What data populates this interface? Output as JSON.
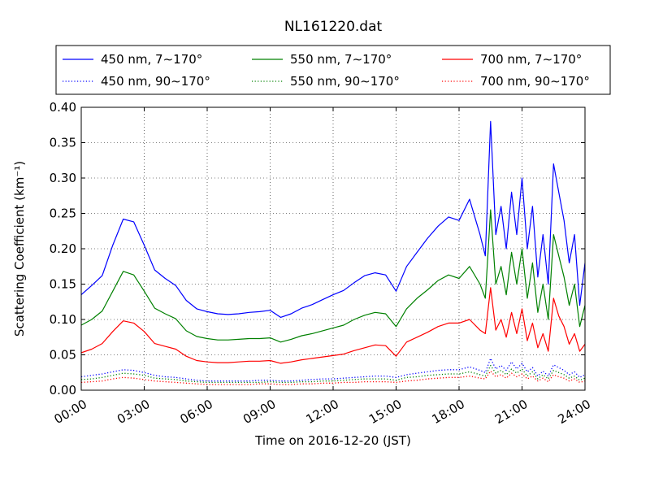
{
  "chart_data": {
    "type": "line",
    "title": "NL161220.dat",
    "xlabel": "Time on 2016-12-20 (JST)",
    "ylabel": "Scattering Coefficient (km⁻¹)",
    "xlim": [
      0,
      24
    ],
    "ylim": [
      0.0,
      0.4
    ],
    "grid": true,
    "legend_position": "top",
    "x_tick_labels": [
      "00:00",
      "03:00",
      "06:00",
      "09:00",
      "12:00",
      "15:00",
      "18:00",
      "21:00",
      "24:00"
    ],
    "y_tick_labels": [
      "0.00",
      "0.05",
      "0.10",
      "0.15",
      "0.20",
      "0.25",
      "0.30",
      "0.35",
      "0.40"
    ],
    "x_hours": [
      0.0,
      0.5,
      1.0,
      1.5,
      2.0,
      2.5,
      3.0,
      3.5,
      4.0,
      4.5,
      5.0,
      5.5,
      6.0,
      6.5,
      7.0,
      7.5,
      8.0,
      8.5,
      9.0,
      9.5,
      10.0,
      10.5,
      11.0,
      11.5,
      12.0,
      12.5,
      13.0,
      13.5,
      14.0,
      14.5,
      15.0,
      15.5,
      16.0,
      16.5,
      17.0,
      17.5,
      18.0,
      18.5,
      19.0,
      19.25,
      19.5,
      19.75,
      20.0,
      20.25,
      20.5,
      20.75,
      21.0,
      21.25,
      21.5,
      21.75,
      22.0,
      22.25,
      22.5,
      22.75,
      23.0,
      23.25,
      23.5,
      23.75,
      24.0
    ],
    "series": [
      {
        "name": "450 nm, 7∼170°",
        "color": "#0000ff",
        "style": "solid",
        "values": [
          0.135,
          0.148,
          0.162,
          0.205,
          0.242,
          0.238,
          0.205,
          0.17,
          0.158,
          0.148,
          0.127,
          0.115,
          0.111,
          0.108,
          0.107,
          0.108,
          0.11,
          0.111,
          0.113,
          0.103,
          0.108,
          0.116,
          0.121,
          0.128,
          0.135,
          0.141,
          0.152,
          0.162,
          0.166,
          0.163,
          0.14,
          0.175,
          0.195,
          0.215,
          0.232,
          0.245,
          0.24,
          0.27,
          0.22,
          0.19,
          0.38,
          0.22,
          0.26,
          0.2,
          0.28,
          0.22,
          0.3,
          0.2,
          0.26,
          0.16,
          0.22,
          0.15,
          0.32,
          0.28,
          0.24,
          0.18,
          0.22,
          0.12,
          0.18
        ]
      },
      {
        "name": "550 nm, 7∼170°",
        "color": "#008000",
        "style": "solid",
        "values": [
          0.092,
          0.1,
          0.112,
          0.14,
          0.168,
          0.163,
          0.14,
          0.116,
          0.108,
          0.101,
          0.084,
          0.076,
          0.073,
          0.071,
          0.071,
          0.072,
          0.073,
          0.073,
          0.074,
          0.068,
          0.072,
          0.077,
          0.08,
          0.084,
          0.088,
          0.092,
          0.1,
          0.106,
          0.11,
          0.108,
          0.09,
          0.115,
          0.13,
          0.142,
          0.155,
          0.163,
          0.158,
          0.175,
          0.15,
          0.13,
          0.255,
          0.15,
          0.175,
          0.135,
          0.195,
          0.15,
          0.2,
          0.13,
          0.18,
          0.11,
          0.15,
          0.1,
          0.22,
          0.19,
          0.16,
          0.12,
          0.15,
          0.09,
          0.12
        ]
      },
      {
        "name": "700 nm, 7∼170°",
        "color": "#ff0000",
        "style": "solid",
        "values": [
          0.053,
          0.058,
          0.066,
          0.083,
          0.098,
          0.095,
          0.083,
          0.066,
          0.062,
          0.058,
          0.048,
          0.042,
          0.04,
          0.039,
          0.039,
          0.04,
          0.041,
          0.041,
          0.042,
          0.038,
          0.04,
          0.043,
          0.045,
          0.047,
          0.049,
          0.051,
          0.056,
          0.06,
          0.064,
          0.063,
          0.048,
          0.068,
          0.075,
          0.082,
          0.09,
          0.095,
          0.095,
          0.1,
          0.085,
          0.08,
          0.145,
          0.085,
          0.1,
          0.075,
          0.11,
          0.08,
          0.115,
          0.07,
          0.095,
          0.06,
          0.08,
          0.055,
          0.13,
          0.105,
          0.09,
          0.065,
          0.08,
          0.055,
          0.065
        ]
      },
      {
        "name": "450 nm, 90∼170°",
        "color": "#0000ff",
        "style": "dotted",
        "values": [
          0.019,
          0.021,
          0.023,
          0.026,
          0.029,
          0.028,
          0.025,
          0.021,
          0.019,
          0.018,
          0.016,
          0.014,
          0.013,
          0.013,
          0.013,
          0.013,
          0.013,
          0.014,
          0.014,
          0.013,
          0.013,
          0.014,
          0.015,
          0.016,
          0.016,
          0.017,
          0.018,
          0.019,
          0.02,
          0.02,
          0.018,
          0.022,
          0.024,
          0.026,
          0.028,
          0.029,
          0.029,
          0.033,
          0.028,
          0.025,
          0.045,
          0.03,
          0.035,
          0.028,
          0.04,
          0.03,
          0.038,
          0.026,
          0.032,
          0.02,
          0.027,
          0.02,
          0.036,
          0.032,
          0.028,
          0.022,
          0.026,
          0.018,
          0.022
        ]
      },
      {
        "name": "550 nm, 90∼170°",
        "color": "#008000",
        "style": "dotted",
        "values": [
          0.015,
          0.016,
          0.018,
          0.021,
          0.024,
          0.023,
          0.021,
          0.017,
          0.016,
          0.015,
          0.013,
          0.012,
          0.011,
          0.011,
          0.011,
          0.011,
          0.011,
          0.011,
          0.012,
          0.011,
          0.011,
          0.012,
          0.012,
          0.013,
          0.013,
          0.014,
          0.015,
          0.016,
          0.016,
          0.016,
          0.014,
          0.018,
          0.019,
          0.021,
          0.022,
          0.023,
          0.023,
          0.026,
          0.022,
          0.02,
          0.035,
          0.024,
          0.028,
          0.022,
          0.03,
          0.024,
          0.03,
          0.02,
          0.026,
          0.016,
          0.022,
          0.016,
          0.028,
          0.025,
          0.022,
          0.017,
          0.02,
          0.014,
          0.017
        ]
      },
      {
        "name": "700 nm, 90∼170°",
        "color": "#ff0000",
        "style": "dotted",
        "values": [
          0.011,
          0.012,
          0.013,
          0.016,
          0.018,
          0.017,
          0.015,
          0.013,
          0.012,
          0.011,
          0.01,
          0.009,
          0.008,
          0.008,
          0.008,
          0.008,
          0.008,
          0.009,
          0.009,
          0.008,
          0.008,
          0.009,
          0.009,
          0.01,
          0.01,
          0.011,
          0.011,
          0.012,
          0.012,
          0.012,
          0.011,
          0.013,
          0.014,
          0.016,
          0.017,
          0.018,
          0.018,
          0.02,
          0.017,
          0.016,
          0.027,
          0.019,
          0.022,
          0.017,
          0.024,
          0.019,
          0.023,
          0.016,
          0.02,
          0.013,
          0.017,
          0.012,
          0.022,
          0.019,
          0.017,
          0.013,
          0.016,
          0.011,
          0.013
        ]
      }
    ],
    "legend_order": [
      0,
      1,
      2,
      3,
      4,
      5
    ]
  }
}
